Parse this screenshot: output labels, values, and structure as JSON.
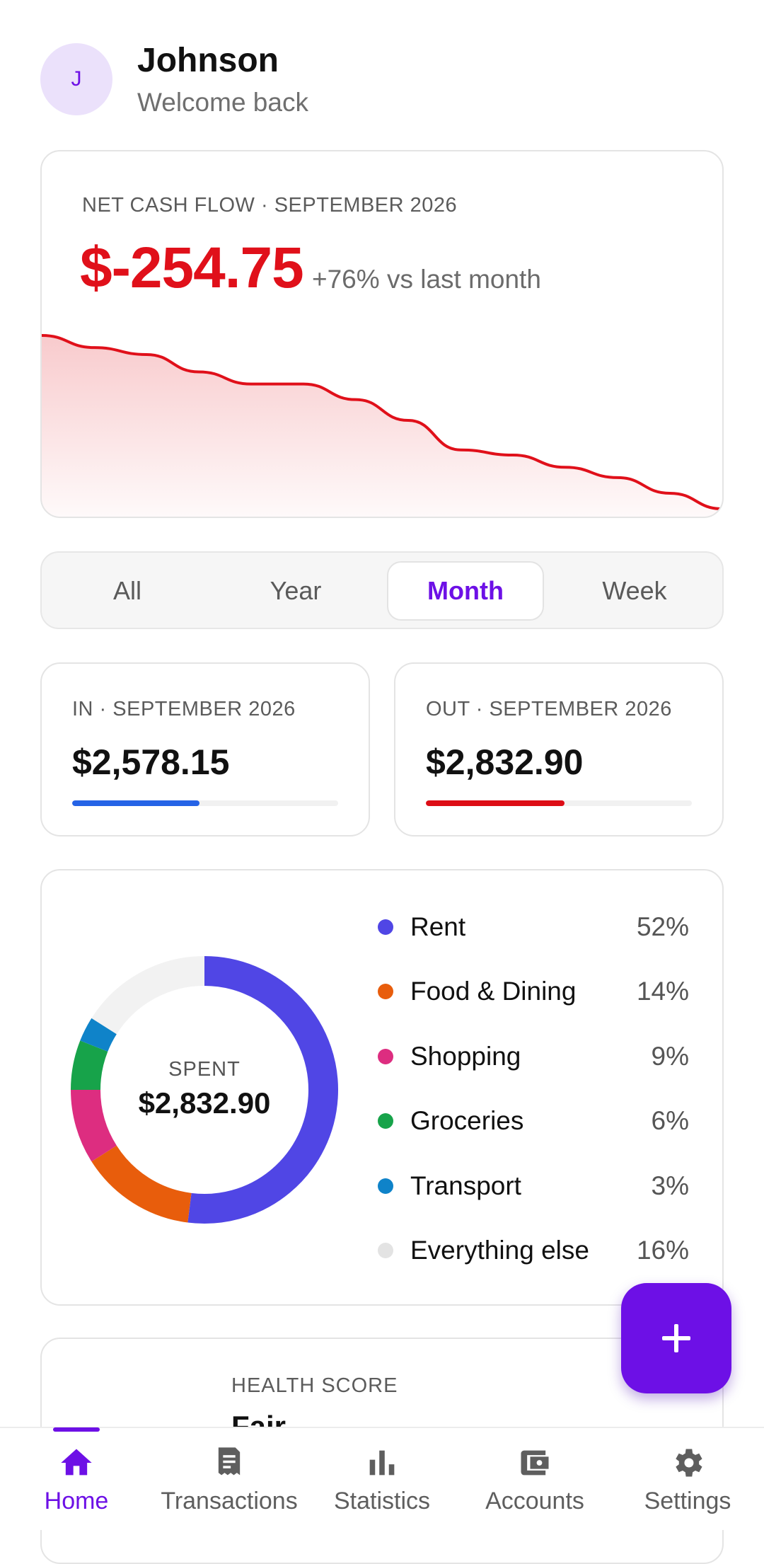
{
  "header": {
    "avatar_initial": "J",
    "user_name": "Johnson",
    "subtitle": "Welcome back"
  },
  "cash_flow": {
    "label": "NET CASH FLOW · SEPTEMBER 2026",
    "value": "$-254.75",
    "delta": "+76% vs last month",
    "accent_color": "#e0101a",
    "trend": [
      100,
      93,
      89,
      79,
      72,
      72,
      63,
      51,
      34,
      31,
      24,
      18,
      9,
      0
    ]
  },
  "period_tabs": {
    "items": [
      "All",
      "Year",
      "Month",
      "Week"
    ],
    "active": "Month"
  },
  "income": {
    "label": "IN · SEPTEMBER 2026",
    "value": "$2,578.15",
    "progress_fraction": 0.48,
    "color": "#2563e6"
  },
  "expense": {
    "label": "OUT · SEPTEMBER 2026",
    "value": "$2,832.90",
    "progress_fraction": 0.52,
    "color": "#dd0d16"
  },
  "spending": {
    "center_label": "SPENT",
    "center_value": "$2,832.90",
    "categories": [
      {
        "name": "Rent",
        "pct_label": "52%",
        "pct": 52,
        "color": "#5046e5"
      },
      {
        "name": "Food & Dining",
        "pct_label": "14%",
        "pct": 14,
        "color": "#e85d0c"
      },
      {
        "name": "Shopping",
        "pct_label": "9%",
        "pct": 9,
        "color": "#dd2d80"
      },
      {
        "name": "Groceries",
        "pct_label": "6%",
        "pct": 6,
        "color": "#17a34a"
      },
      {
        "name": "Transport",
        "pct_label": "3%",
        "pct": 3,
        "color": "#0f83c9"
      },
      {
        "name": "Everything else",
        "pct_label": "16%",
        "pct": 16,
        "color": "#e3e3e3"
      }
    ]
  },
  "health": {
    "label": "HEALTH SCORE",
    "value": "Fair"
  },
  "fab": {
    "icon": "plus-icon"
  },
  "nav": {
    "items": [
      {
        "label": "Home",
        "icon": "home-icon",
        "active": true
      },
      {
        "label": "Transactions",
        "icon": "receipt-icon",
        "active": false
      },
      {
        "label": "Statistics",
        "icon": "bar-chart-icon",
        "active": false
      },
      {
        "label": "Accounts",
        "icon": "wallet-icon",
        "active": false
      },
      {
        "label": "Settings",
        "icon": "gear-icon",
        "active": false
      }
    ],
    "active_color": "#6d10e6",
    "inactive_color": "#5e5e5e"
  }
}
